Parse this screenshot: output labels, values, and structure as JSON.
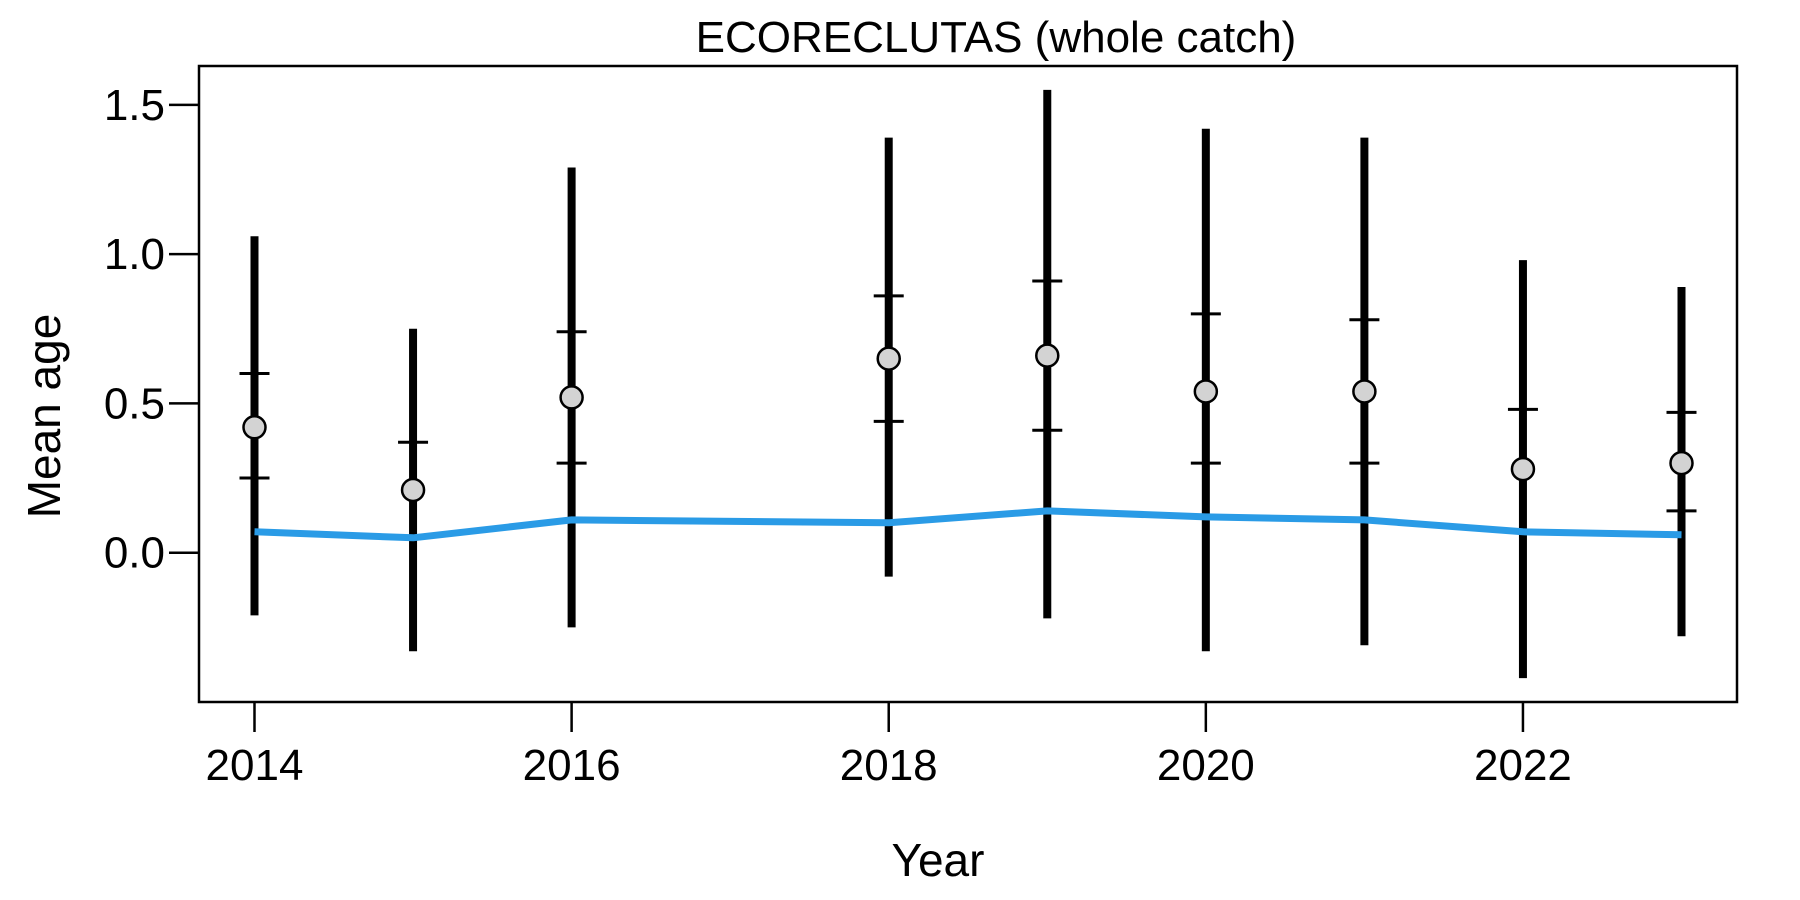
{
  "chart_data": {
    "type": "line",
    "title": "ECORECLUTAS (whole catch)",
    "xlabel": "Year",
    "ylabel": "Mean age",
    "x": [
      2014,
      2015,
      2016,
      2018,
      2019,
      2020,
      2021,
      2022,
      2023
    ],
    "xlim": [
      2013.65,
      2023.35
    ],
    "ylim": [
      -0.5,
      1.63
    ],
    "xticks": [
      2014,
      2016,
      2018,
      2020,
      2022
    ],
    "xtick_labels": [
      "2014",
      "2016",
      "2018",
      "2020",
      "2022"
    ],
    "yticks": [
      0.0,
      0.5,
      1.0,
      1.5
    ],
    "ytick_labels": [
      "0.0",
      "0.5",
      "1.0",
      "1.5"
    ],
    "grid": false,
    "series": [
      {
        "kind": "points_with_intervals",
        "values": [
          0.42,
          0.21,
          0.52,
          0.65,
          0.66,
          0.54,
          0.54,
          0.28,
          0.3
        ],
        "inner_low": [
          0.25,
          null,
          0.3,
          0.44,
          0.41,
          0.3,
          0.3,
          null,
          0.14
        ],
        "inner_high": [
          0.6,
          0.37,
          0.74,
          0.86,
          0.91,
          0.8,
          0.78,
          0.48,
          0.47
        ],
        "outer_low": [
          -0.21,
          -0.33,
          -0.25,
          -0.08,
          -0.22,
          -0.33,
          -0.31,
          -0.42,
          -0.28
        ],
        "outer_high": [
          1.06,
          0.75,
          1.29,
          1.39,
          1.55,
          1.42,
          1.39,
          0.98,
          0.89
        ],
        "marker_color": "#d3d3d3"
      },
      {
        "kind": "line",
        "values": [
          0.07,
          0.05,
          0.11,
          0.1,
          0.14,
          0.12,
          0.11,
          0.07,
          0.06
        ],
        "color": "#2a9be6"
      }
    ]
  }
}
